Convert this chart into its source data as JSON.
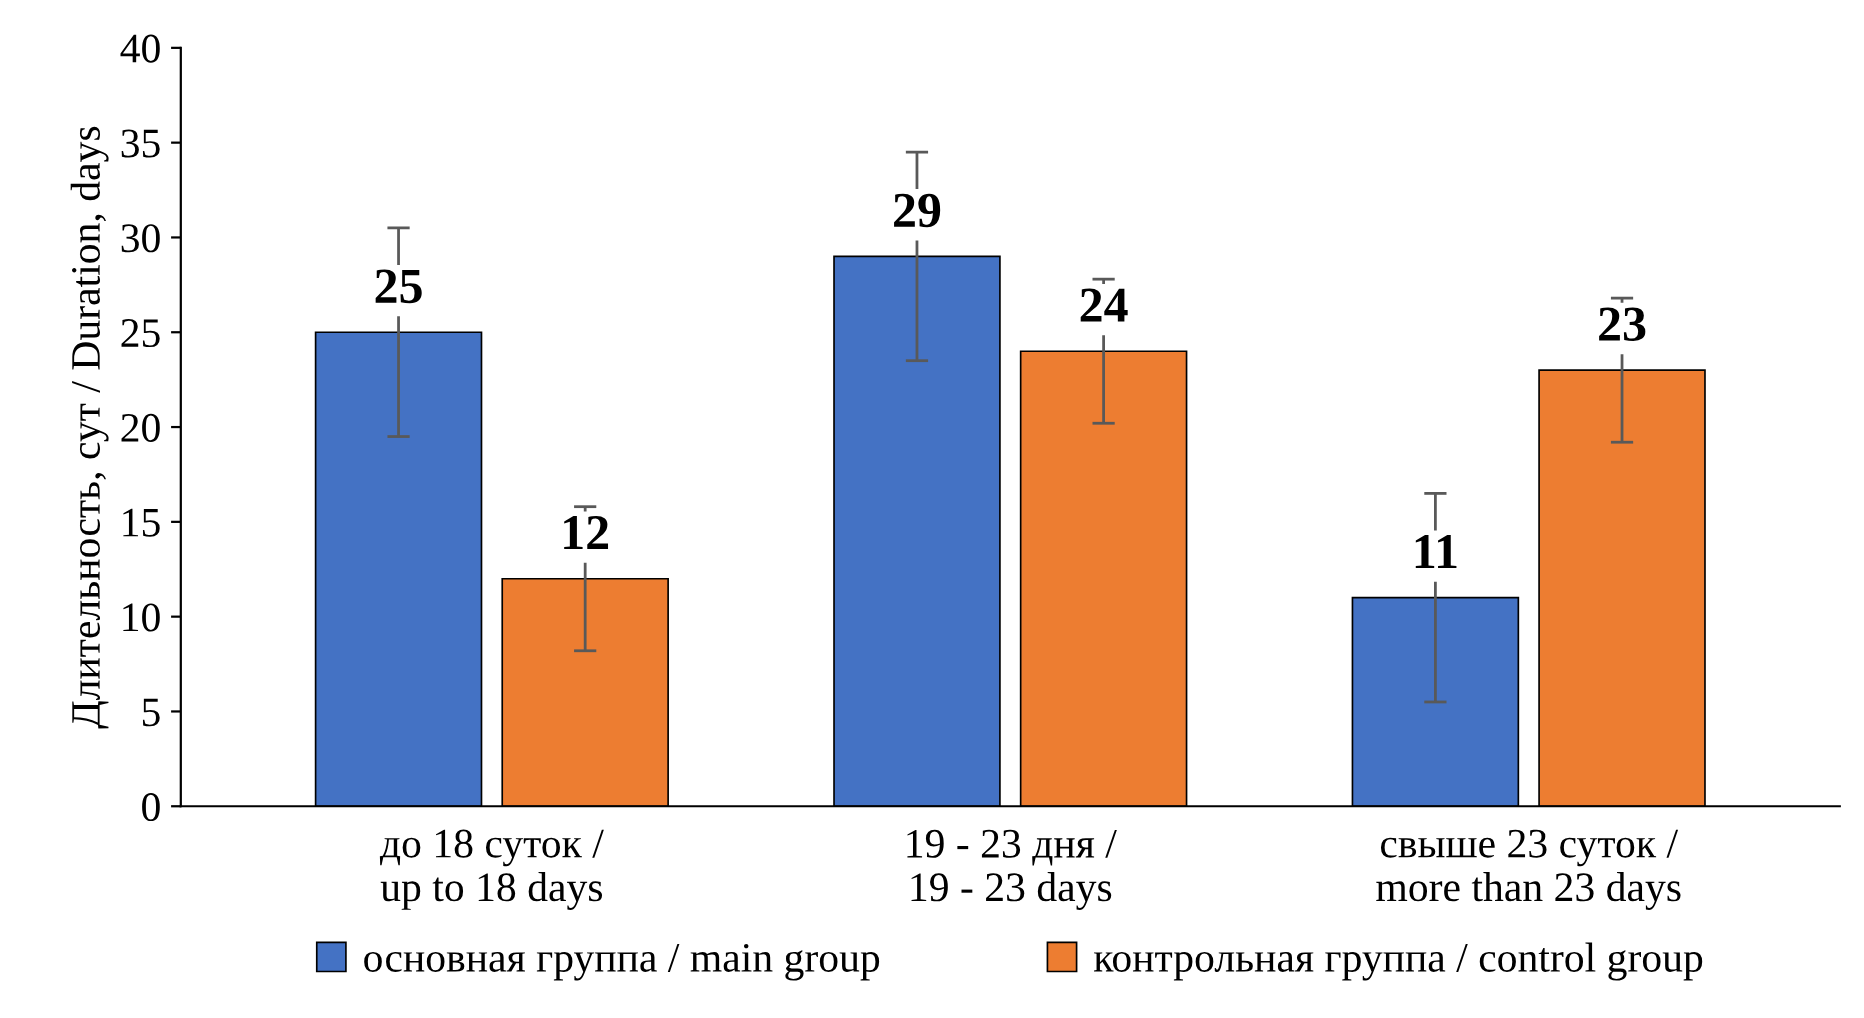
{
  "chart_data": {
    "type": "bar",
    "ylabel": "Длительность, сут / Duration, days",
    "categories": [
      "до 18 суток /\nup to 18 days",
      "19 - 23 дня /\n19 - 23 days",
      "свыше 23 суток /\nmore than 23 days"
    ],
    "series": [
      {
        "name": "основная группа / main group",
        "color": "#4472c4",
        "values": [
          25,
          29,
          11
        ],
        "errors": [
          5.5,
          5.5,
          5.5
        ]
      },
      {
        "name": "контрольная группа / control group",
        "color": "#ed7d31",
        "values": [
          12,
          24,
          23
        ],
        "errors": [
          3.8,
          3.8,
          3.8
        ]
      }
    ],
    "ylim": [
      0,
      40
    ],
    "yticks": [
      0,
      5,
      10,
      15,
      20,
      25,
      30,
      35,
      40
    ],
    "grid": false,
    "legend": "bottom",
    "data_labels": true
  }
}
